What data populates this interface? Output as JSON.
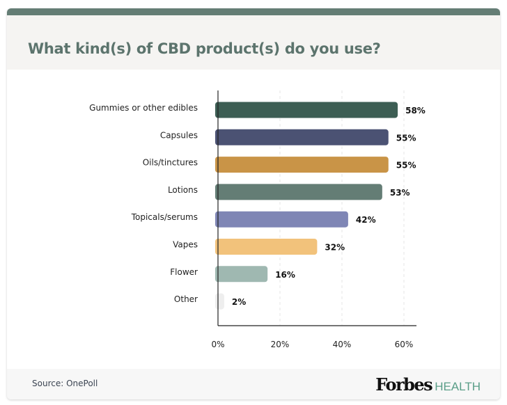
{
  "chart_data": {
    "type": "bar",
    "orientation": "horizontal",
    "title": "What kind(s) of CBD product(s) do you use?",
    "categories": [
      "Gummies or other edibles",
      "Capsules",
      "Oils/tinctures",
      "Lotions",
      "Topicals/serums",
      "Vapes",
      "Flower",
      "Other"
    ],
    "values": [
      58,
      55,
      55,
      53,
      42,
      32,
      16,
      2
    ],
    "value_labels": [
      "58%",
      "55%",
      "55%",
      "53%",
      "42%",
      "32%",
      "16%",
      "2%"
    ],
    "colors": [
      "#3d5e54",
      "#4b5273",
      "#c99447",
      "#647d75",
      "#7f86b5",
      "#f2c27b",
      "#9fb8b1",
      "#eeeeee"
    ],
    "xlim": [
      0,
      60
    ],
    "xticks": [
      0,
      20,
      40,
      60
    ],
    "xtick_labels": [
      "0%",
      "20%",
      "40%",
      "60%"
    ],
    "grid": "vertical dashed",
    "xlabel": "",
    "ylabel": ""
  },
  "source": "Source:  OnePoll",
  "logo": {
    "brand": "Forbes",
    "sub": "HEALTH"
  },
  "accent_color": "#647d75"
}
